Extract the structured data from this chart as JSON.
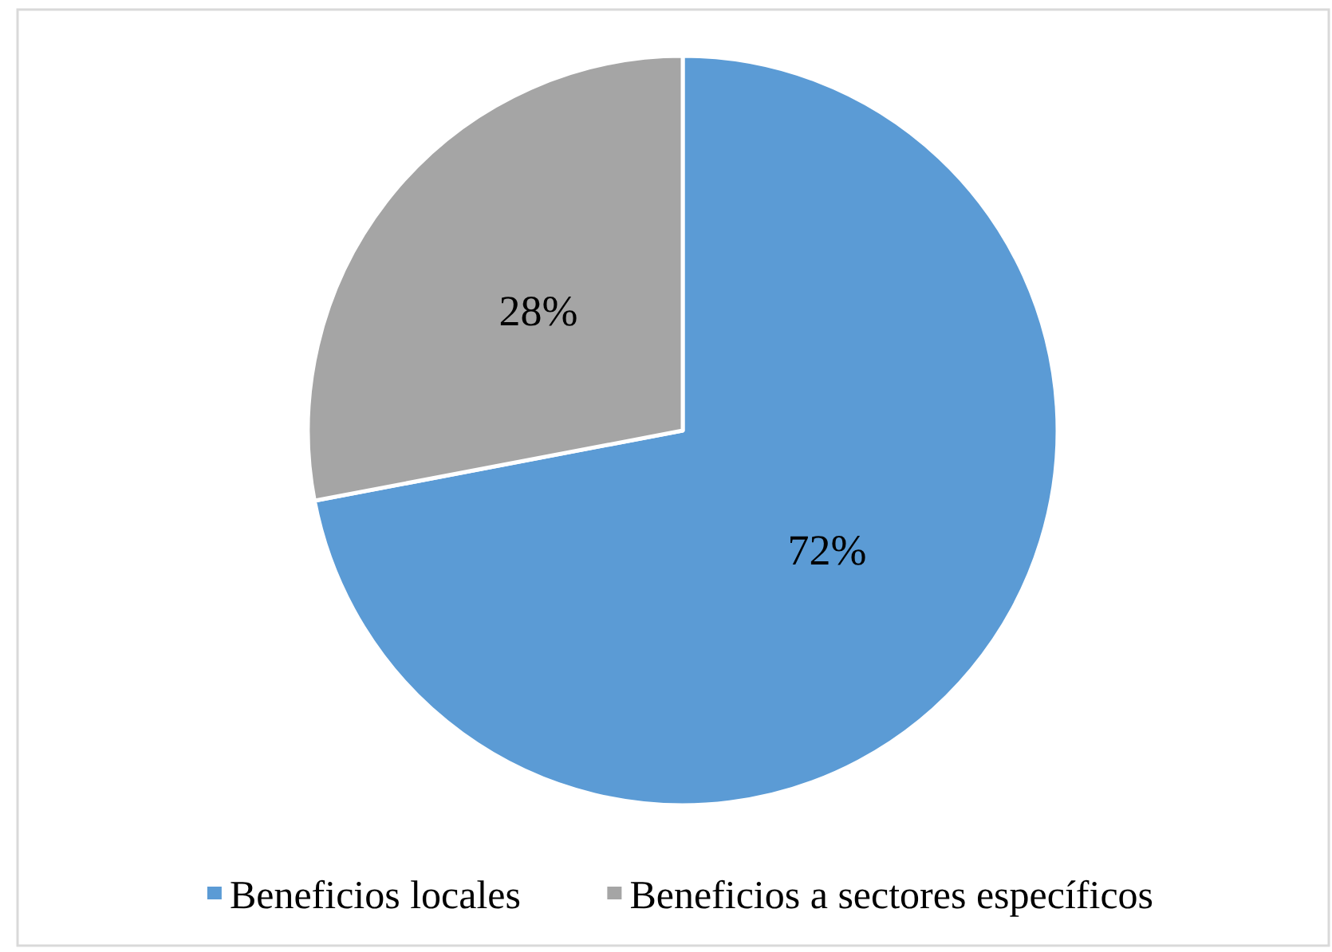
{
  "chart_data": {
    "type": "pie",
    "categories": [
      "Beneficios locales",
      "Beneficios a sectores específicos"
    ],
    "values": [
      72,
      28
    ],
    "colors": [
      "#5b9bd5",
      "#a5a5a5"
    ],
    "value_labels": [
      "72%",
      "28%"
    ],
    "legend": "bottom"
  }
}
